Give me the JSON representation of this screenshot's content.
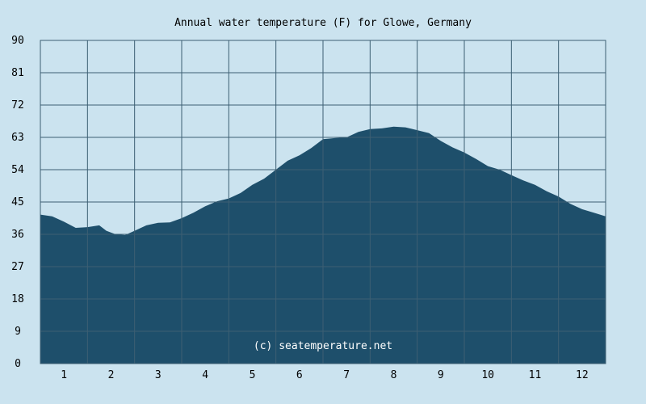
{
  "chart_data": {
    "type": "area",
    "title": "Annual water temperature (F) for Glowe, Germany",
    "credit": "(c) seatemperature.net",
    "xlabel": "",
    "ylabel": "",
    "ylim": [
      0,
      90
    ],
    "xlim": [
      0.5,
      12.5
    ],
    "y_ticks": [
      "0",
      "9",
      "18",
      "27",
      "36",
      "45",
      "54",
      "63",
      "72",
      "81",
      "90"
    ],
    "x_ticks": [
      "1",
      "2",
      "3",
      "4",
      "5",
      "6",
      "7",
      "8",
      "9",
      "10",
      "11",
      "12"
    ],
    "grid": true,
    "colors": {
      "background": "#cbe3ef",
      "plot_background": "#cbe3ef",
      "fill": "#1e4f6b",
      "grid": "#3d5f73",
      "credit": "#ffffff"
    },
    "series": [
      {
        "x": [
          0.5,
          0.75,
          1.0,
          1.25,
          1.5,
          1.75,
          1.9,
          2.1,
          2.3,
          2.5,
          2.75,
          3.0,
          3.25,
          3.5,
          3.75,
          4.0,
          4.25,
          4.5,
          4.75,
          5.0,
          5.25,
          5.5,
          5.75,
          6.0,
          6.25,
          6.5,
          6.75,
          7.0,
          7.25,
          7.5,
          7.75,
          8.0,
          8.25,
          8.5,
          8.75,
          9.0,
          9.25,
          9.5,
          9.75,
          10.0,
          10.25,
          10.5,
          10.75,
          11.0,
          11.25,
          11.5,
          11.75,
          12.0,
          12.25,
          12.5
        ],
        "values": [
          41.5,
          41.0,
          39.5,
          37.8,
          38.0,
          38.5,
          37.0,
          36.0,
          35.8,
          37.0,
          38.5,
          39.2,
          39.3,
          40.5,
          42.0,
          43.8,
          45.2,
          46.0,
          47.5,
          49.8,
          51.5,
          54.0,
          56.5,
          58.0,
          60.0,
          62.5,
          62.8,
          63.0,
          64.5,
          65.3,
          65.5,
          66.0,
          65.8,
          65.0,
          64.2,
          62.0,
          60.2,
          58.8,
          57.0,
          55.0,
          54.0,
          52.5,
          51.0,
          49.8,
          48.0,
          46.5,
          44.5,
          43.0,
          42.0,
          41.0
        ]
      }
    ]
  }
}
